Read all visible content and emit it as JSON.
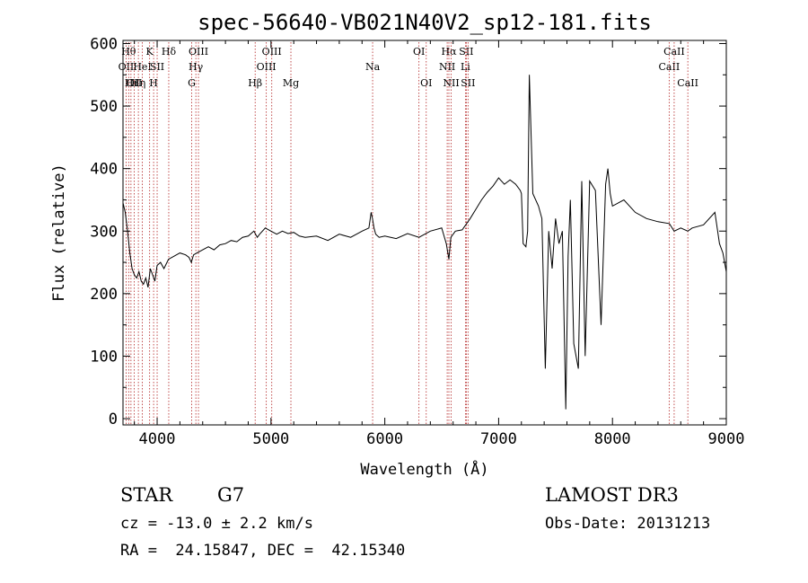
{
  "chart_data": {
    "type": "line",
    "title": "spec-56640-VB021N40V2_sp12-181.fits",
    "xlabel": "Wavelength (Å)",
    "ylabel": "Flux (relative)",
    "xlim": [
      3700,
      9000
    ],
    "ylim": [
      -10,
      605
    ],
    "xticks": [
      4000,
      5000,
      6000,
      7000,
      8000,
      9000
    ],
    "yticks": [
      0,
      100,
      200,
      300,
      400,
      500,
      600
    ],
    "grid": false,
    "colors": {
      "spectrum": "#000000",
      "line_markers": "#b22222",
      "axes": "#000000"
    },
    "series": [
      {
        "x": [
          3700,
          3720,
          3740,
          3760,
          3780,
          3800,
          3820,
          3840,
          3860,
          3880,
          3900,
          3920,
          3940,
          3960,
          3980,
          4000,
          4030,
          4060,
          4100,
          4150,
          4200,
          4250,
          4280,
          4300,
          4320,
          4350,
          4400,
          4450,
          4500,
          4550,
          4600,
          4650,
          4700,
          4750,
          4800,
          4850,
          4880,
          4900,
          4950,
          5000,
          5050,
          5100,
          5150,
          5200,
          5250,
          5300,
          5400,
          5500,
          5600,
          5700,
          5800,
          5860,
          5880,
          5892,
          5905,
          5920,
          5950,
          6000,
          6100,
          6200,
          6300,
          6400,
          6500,
          6540,
          6563,
          6580,
          6620,
          6680,
          6750,
          6800,
          6850,
          6900,
          6950,
          7000,
          7050,
          7100,
          7150,
          7190,
          7200,
          7215,
          7240,
          7255,
          7270,
          7300,
          7350,
          7380,
          7410,
          7440,
          7470,
          7500,
          7530,
          7560,
          7590,
          7610,
          7630,
          7660,
          7700,
          7730,
          7760,
          7800,
          7850,
          7900,
          7940,
          7960,
          7980,
          8000,
          8100,
          8200,
          8300,
          8400,
          8500,
          8542,
          8600,
          8662,
          8700,
          8800,
          8900,
          8940,
          8970,
          9000
        ],
        "y": [
          345,
          330,
          300,
          265,
          240,
          230,
          225,
          235,
          220,
          215,
          225,
          210,
          240,
          230,
          220,
          245,
          250,
          240,
          255,
          260,
          265,
          262,
          258,
          250,
          262,
          265,
          270,
          275,
          270,
          278,
          280,
          285,
          283,
          290,
          292,
          300,
          290,
          295,
          305,
          300,
          295,
          300,
          296,
          298,
          292,
          290,
          292,
          285,
          295,
          290,
          300,
          305,
          330,
          320,
          305,
          295,
          290,
          292,
          288,
          296,
          290,
          300,
          305,
          280,
          255,
          290,
          300,
          302,
          320,
          335,
          350,
          362,
          372,
          385,
          375,
          382,
          375,
          365,
          360,
          280,
          275,
          300,
          550,
          360,
          340,
          320,
          80,
          300,
          240,
          320,
          280,
          300,
          15,
          260,
          350,
          120,
          80,
          380,
          100,
          380,
          365,
          150,
          375,
          400,
          360,
          340,
          350,
          330,
          320,
          315,
          312,
          300,
          305,
          300,
          305,
          310,
          330,
          280,
          265,
          235
        ]
      }
    ],
    "line_markers": [
      {
        "wavelength": 3727,
        "label": "OII",
        "row": 2
      },
      {
        "wavelength": 3750,
        "label": "Hθ",
        "row": 1
      },
      {
        "wavelength": 3770,
        "label": "Hι",
        "row": 3
      },
      {
        "wavelength": 3798,
        "label": "OII",
        "row": 3
      },
      {
        "wavelength": 3835,
        "label": "Hη",
        "row": 3
      },
      {
        "wavelength": 3870,
        "label": "HeI",
        "row": 2
      },
      {
        "wavelength": 3934,
        "label": "K",
        "row": 1
      },
      {
        "wavelength": 3969,
        "label": "H",
        "row": 3
      },
      {
        "wavelength": 4000,
        "label": "SII",
        "row": 2
      },
      {
        "wavelength": 4102,
        "label": "Hδ",
        "row": 1
      },
      {
        "wavelength": 4304,
        "label": "G",
        "row": 3
      },
      {
        "wavelength": 4340,
        "label": "Hγ",
        "row": 2
      },
      {
        "wavelength": 4363,
        "label": "OIII",
        "row": 1
      },
      {
        "wavelength": 4861,
        "label": "Hβ",
        "row": 3
      },
      {
        "wavelength": 4959,
        "label": "OIII",
        "row": 2
      },
      {
        "wavelength": 5007,
        "label": "OIII",
        "row": 1
      },
      {
        "wavelength": 5175,
        "label": "Mg",
        "row": 3
      },
      {
        "wavelength": 5893,
        "label": "Na",
        "row": 2
      },
      {
        "wavelength": 6300,
        "label": "OI",
        "row": 1
      },
      {
        "wavelength": 6364,
        "label": "OI",
        "row": 3
      },
      {
        "wavelength": 6548,
        "label": "NII",
        "row": 2
      },
      {
        "wavelength": 6563,
        "label": "Hα",
        "row": 1
      },
      {
        "wavelength": 6583,
        "label": "NII",
        "row": 3
      },
      {
        "wavelength": 6708,
        "label": "Li",
        "row": 2
      },
      {
        "wavelength": 6716,
        "label": "SII",
        "row": 1
      },
      {
        "wavelength": 6731,
        "label": "SII",
        "row": 3
      },
      {
        "wavelength": 8498,
        "label": "CaII",
        "row": 2
      },
      {
        "wavelength": 8542,
        "label": "CaII",
        "row": 1
      },
      {
        "wavelength": 8662,
        "label": "CaII",
        "row": 3
      }
    ]
  },
  "info": {
    "object_class": "STAR",
    "subclass": "G7",
    "survey": "LAMOST DR3",
    "redshift": "cz = -13.0 ± 2.2 km/s",
    "obs_date": "Obs-Date: 20131213",
    "coords": "RA =  24.15847, DEC =  42.15340"
  }
}
